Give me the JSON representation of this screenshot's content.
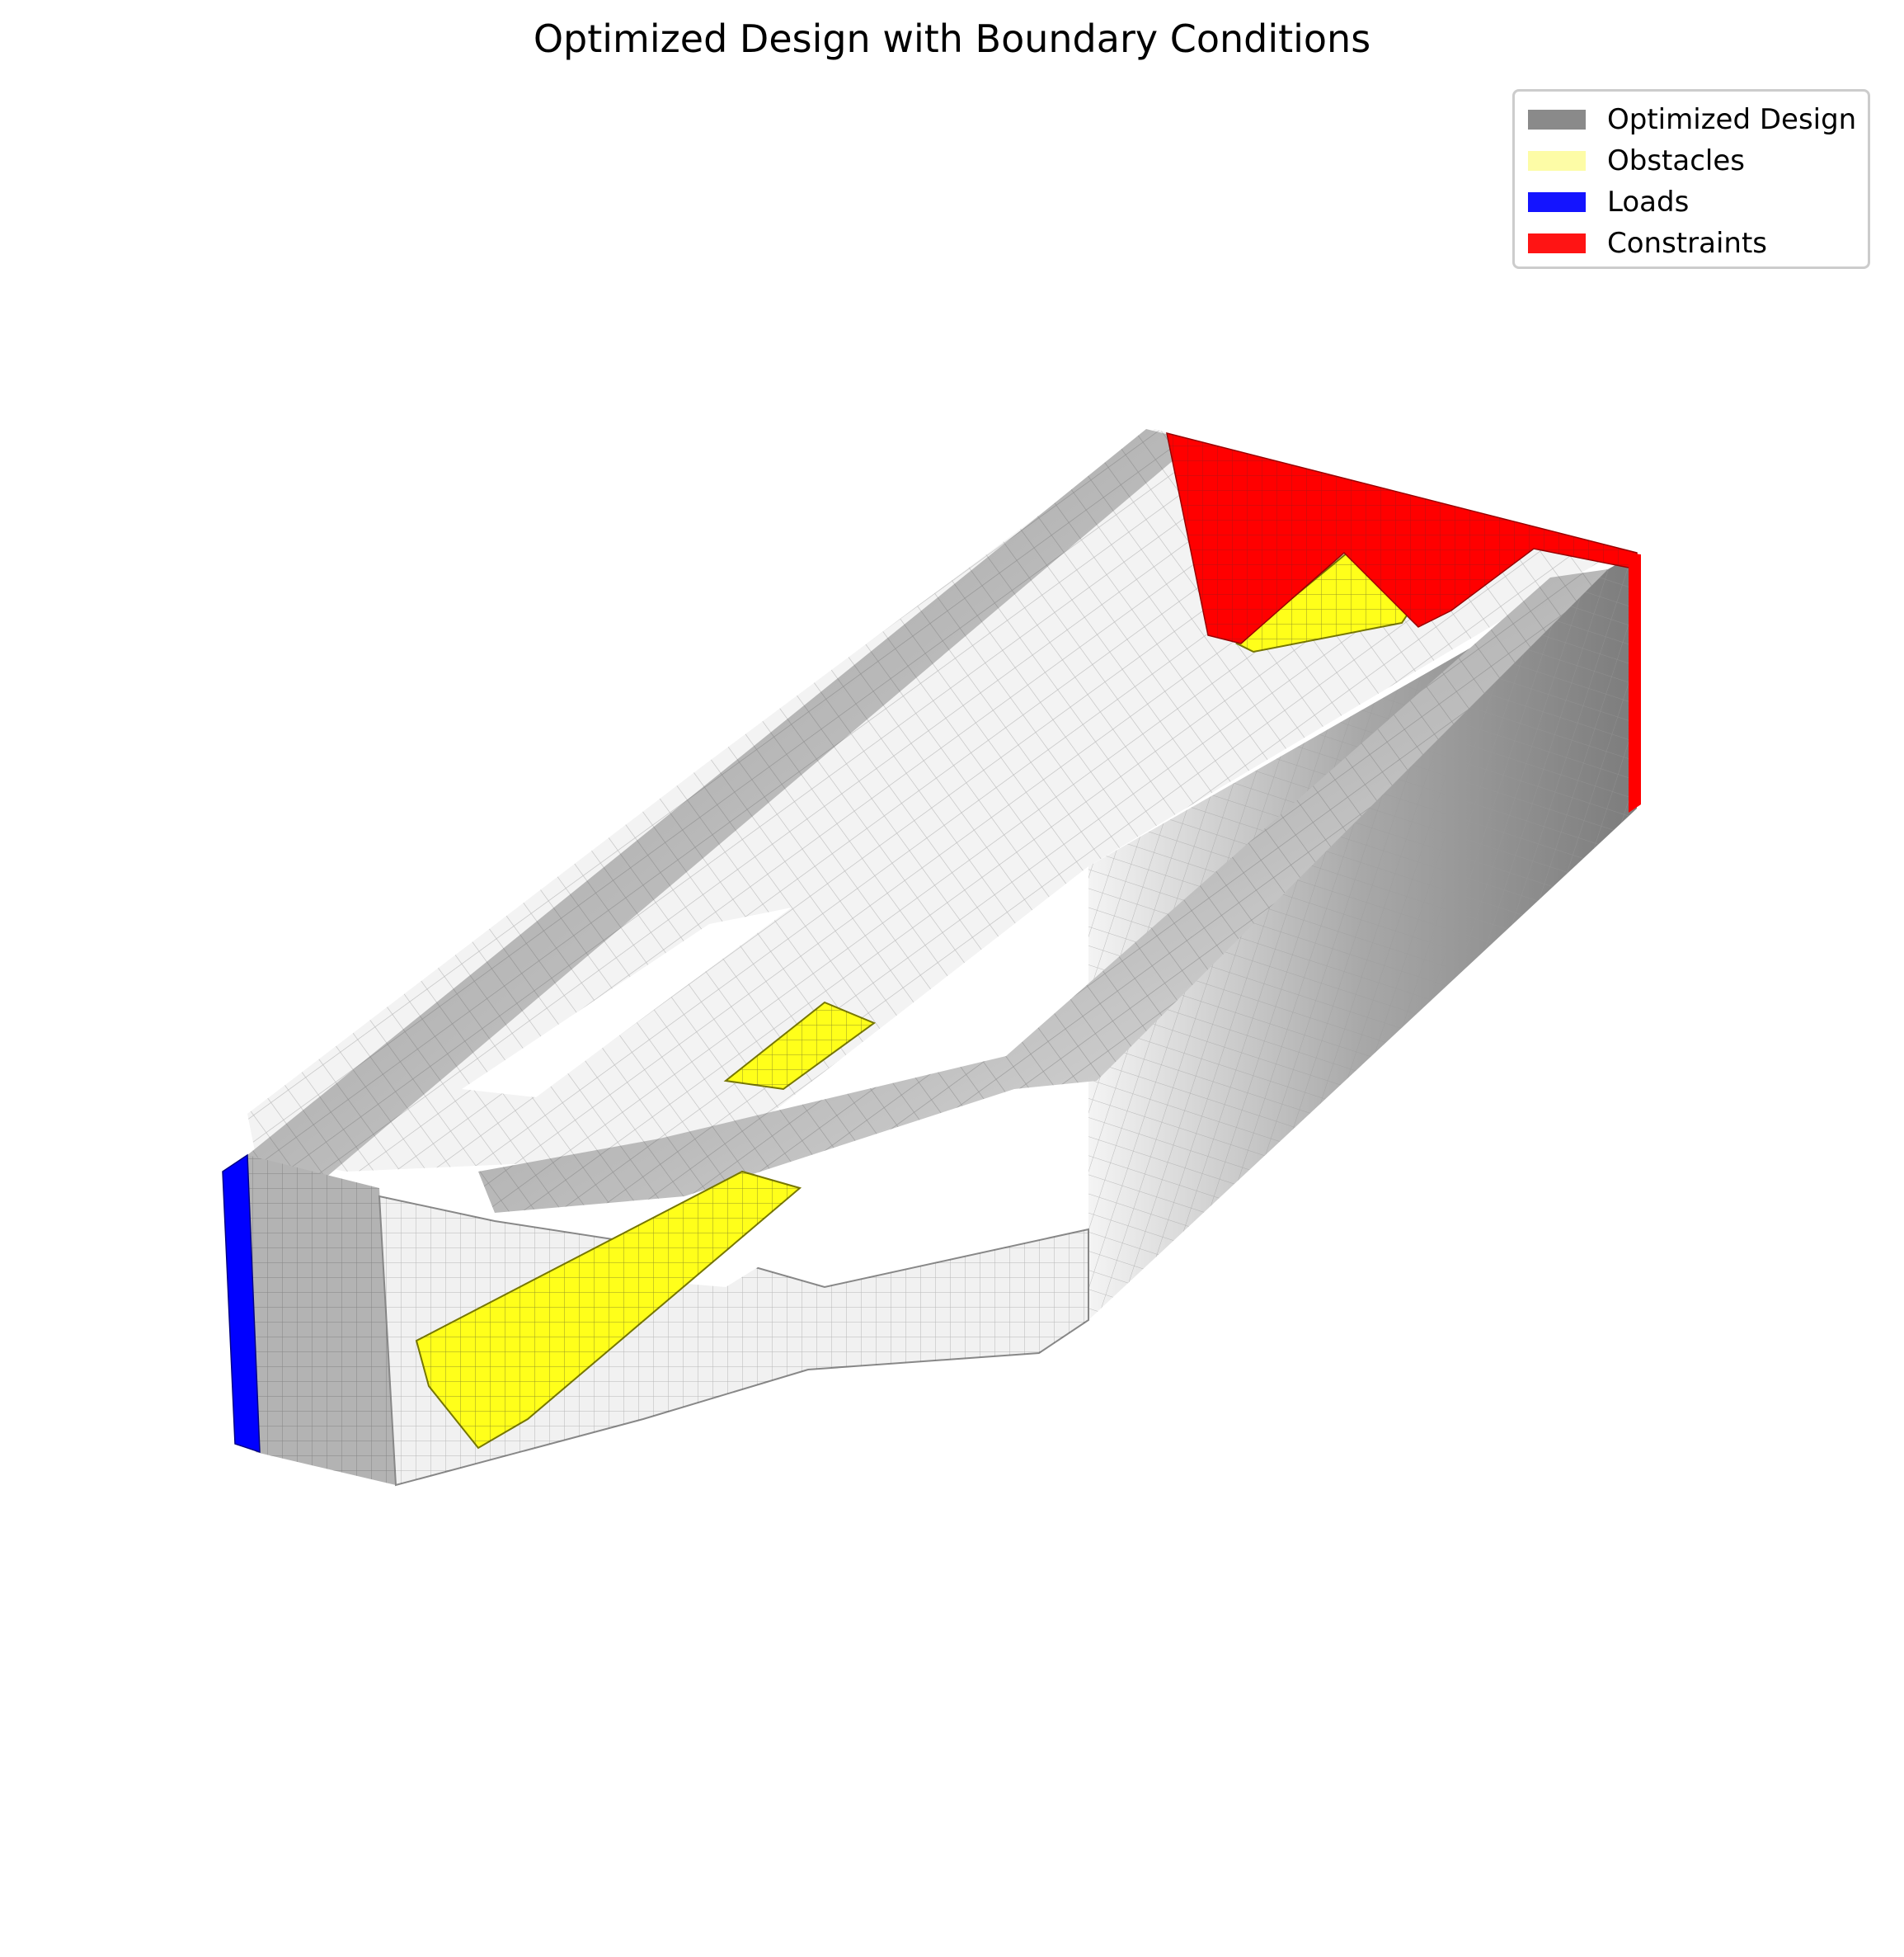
{
  "figure": {
    "title": "Optimized Design with Boundary Conditions"
  },
  "legend": {
    "placement": "top-right",
    "items": [
      {
        "label": "Optimized Design",
        "color": "#8a8a8a"
      },
      {
        "label": "Obstacles",
        "color": "#fdfca6"
      },
      {
        "label": "Loads",
        "color": "#1414ff"
      },
      {
        "label": "Constraints",
        "color": "#ff1414"
      }
    ]
  },
  "colors": {
    "design_dark": "#8c8c8c",
    "design_light": "#f4f4f4",
    "obstacle": "#ffff1a",
    "load": "#0000ff",
    "constraint": "#ff0000",
    "edge": "#555555"
  }
}
